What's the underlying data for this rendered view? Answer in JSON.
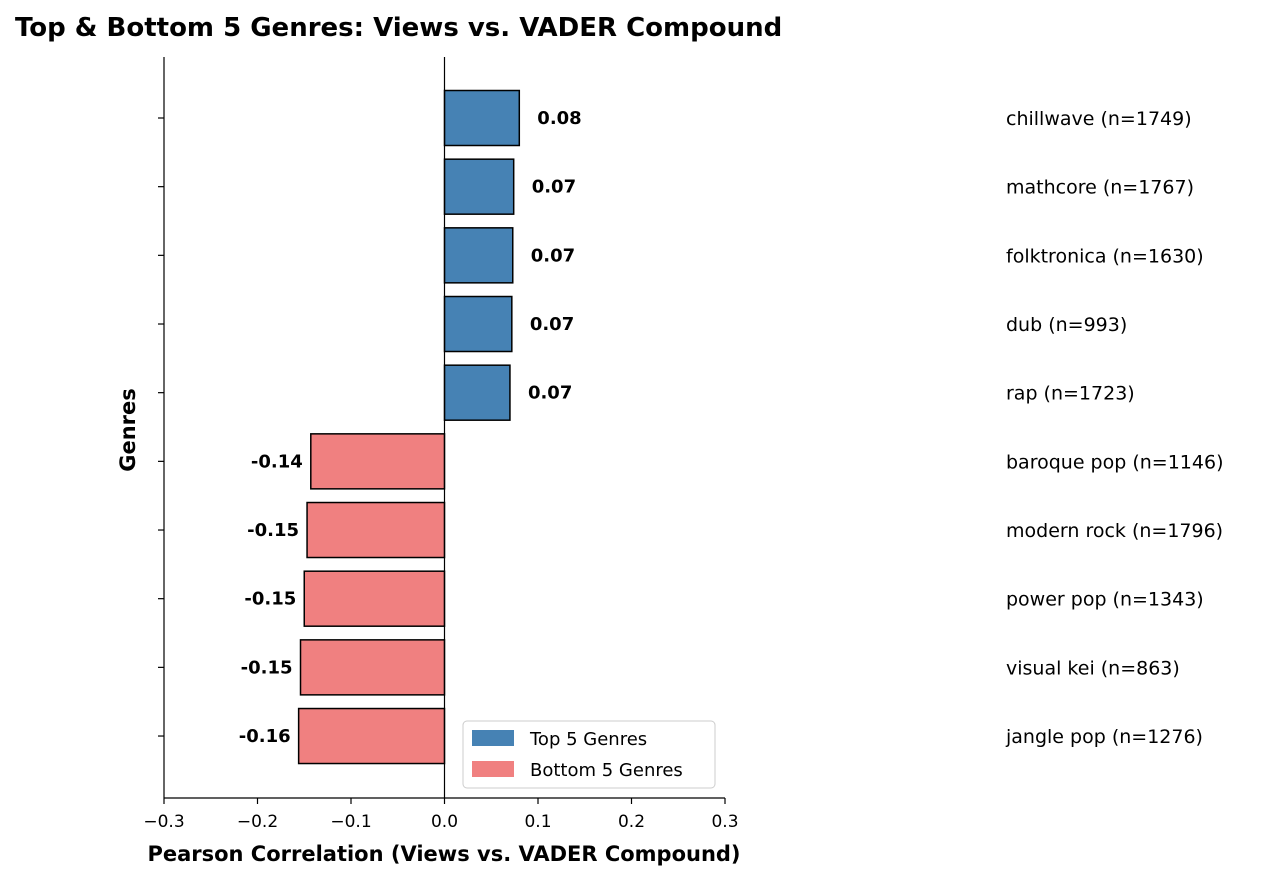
{
  "chart_data": {
    "type": "bar",
    "orientation": "horizontal",
    "title": "Top & Bottom 5 Genres: Views vs. VADER Compound",
    "xlabel": "Pearson Correlation (Views vs. VADER Compound)",
    "ylabel": "Genres",
    "xlim": [
      -0.3,
      0.3
    ],
    "xticks": [
      -0.3,
      -0.2,
      -0.1,
      0.0,
      0.1,
      0.2,
      0.3
    ],
    "xtick_labels": [
      "−0.3",
      "−0.2",
      "−0.1",
      "0.0",
      "0.1",
      "0.2",
      "0.3"
    ],
    "grid": false,
    "legend_placement": "lower-right",
    "legend": [
      {
        "label": "Top 5 Genres",
        "color": "#4682b4"
      },
      {
        "label": "Bottom 5 Genres",
        "color": "#f08080"
      }
    ],
    "bars": [
      {
        "genre": "chillwave (n=1749)",
        "value": 0.08,
        "value_label": "0.08",
        "group": "Top 5 Genres"
      },
      {
        "genre": "mathcore (n=1767)",
        "value": 0.074,
        "value_label": "0.07",
        "group": "Top 5 Genres"
      },
      {
        "genre": "folktronica (n=1630)",
        "value": 0.073,
        "value_label": "0.07",
        "group": "Top 5 Genres"
      },
      {
        "genre": "dub (n=993)",
        "value": 0.072,
        "value_label": "0.07",
        "group": "Top 5 Genres"
      },
      {
        "genre": "rap (n=1723)",
        "value": 0.07,
        "value_label": "0.07",
        "group": "Top 5 Genres"
      },
      {
        "genre": "baroque pop (n=1146)",
        "value": -0.143,
        "value_label": "-0.14",
        "group": "Bottom 5 Genres"
      },
      {
        "genre": "modern rock (n=1796)",
        "value": -0.147,
        "value_label": "-0.15",
        "group": "Bottom 5 Genres"
      },
      {
        "genre": "power pop (n=1343)",
        "value": -0.15,
        "value_label": "-0.15",
        "group": "Bottom 5 Genres"
      },
      {
        "genre": "visual kei (n=863)",
        "value": -0.154,
        "value_label": "-0.15",
        "group": "Bottom 5 Genres"
      },
      {
        "genre": "jangle pop (n=1276)",
        "value": -0.156,
        "value_label": "-0.16",
        "group": "Bottom 5 Genres"
      }
    ]
  }
}
